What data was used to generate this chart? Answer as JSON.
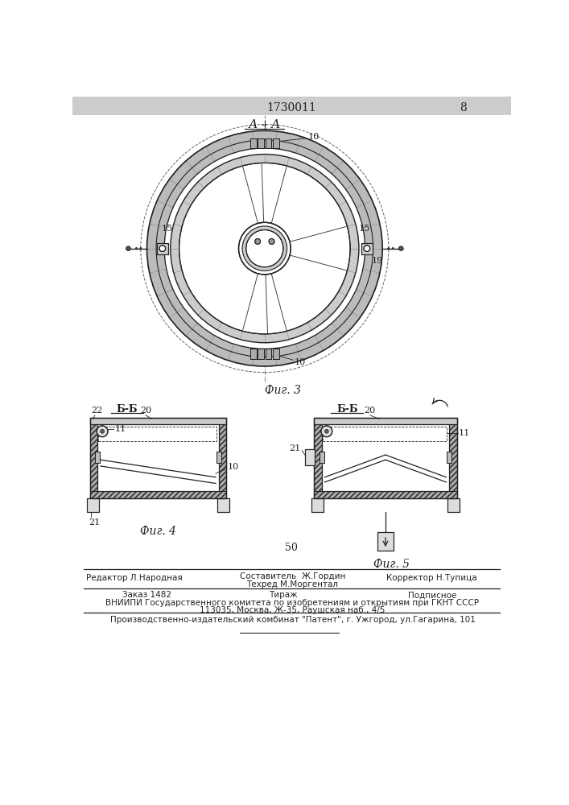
{
  "bg_color": "#f0f0f0",
  "line_color": "#222222",
  "hatch_color": "#444444",
  "page_num": "8",
  "patent_num": "1730011",
  "fig3_label": "Фиг. 3",
  "fig4_label": "Фиг. 4",
  "fig5_label": "Фиг. 5",
  "section_aa": "А – А",
  "section_bb1": "Б-Б",
  "section_bb2": "Б-Б",
  "footer_line1": "Редактор Л.Народная",
  "footer_col2_line1": "Составитель  Ж.Гордин",
  "footer_col2_line2": "Техред М.Моргентал",
  "footer_col3": "Корректор Н.Тупица",
  "footer2_col1": "Заказ 1482",
  "footer2_col2": "Тираж",
  "footer2_col3": "Подписное",
  "footer2_line2": "ВНИИПИ Государственного комитета по изобретениям и открытиям при ГКНТ СССР",
  "footer2_line3": "113035, Москва, Ж-35, Раушская наб., 4/5",
  "footer3": "Производственно-издательский комбинат \"Патент\", г. Ужгород, ул.Гагарина, 101",
  "num50": "50"
}
